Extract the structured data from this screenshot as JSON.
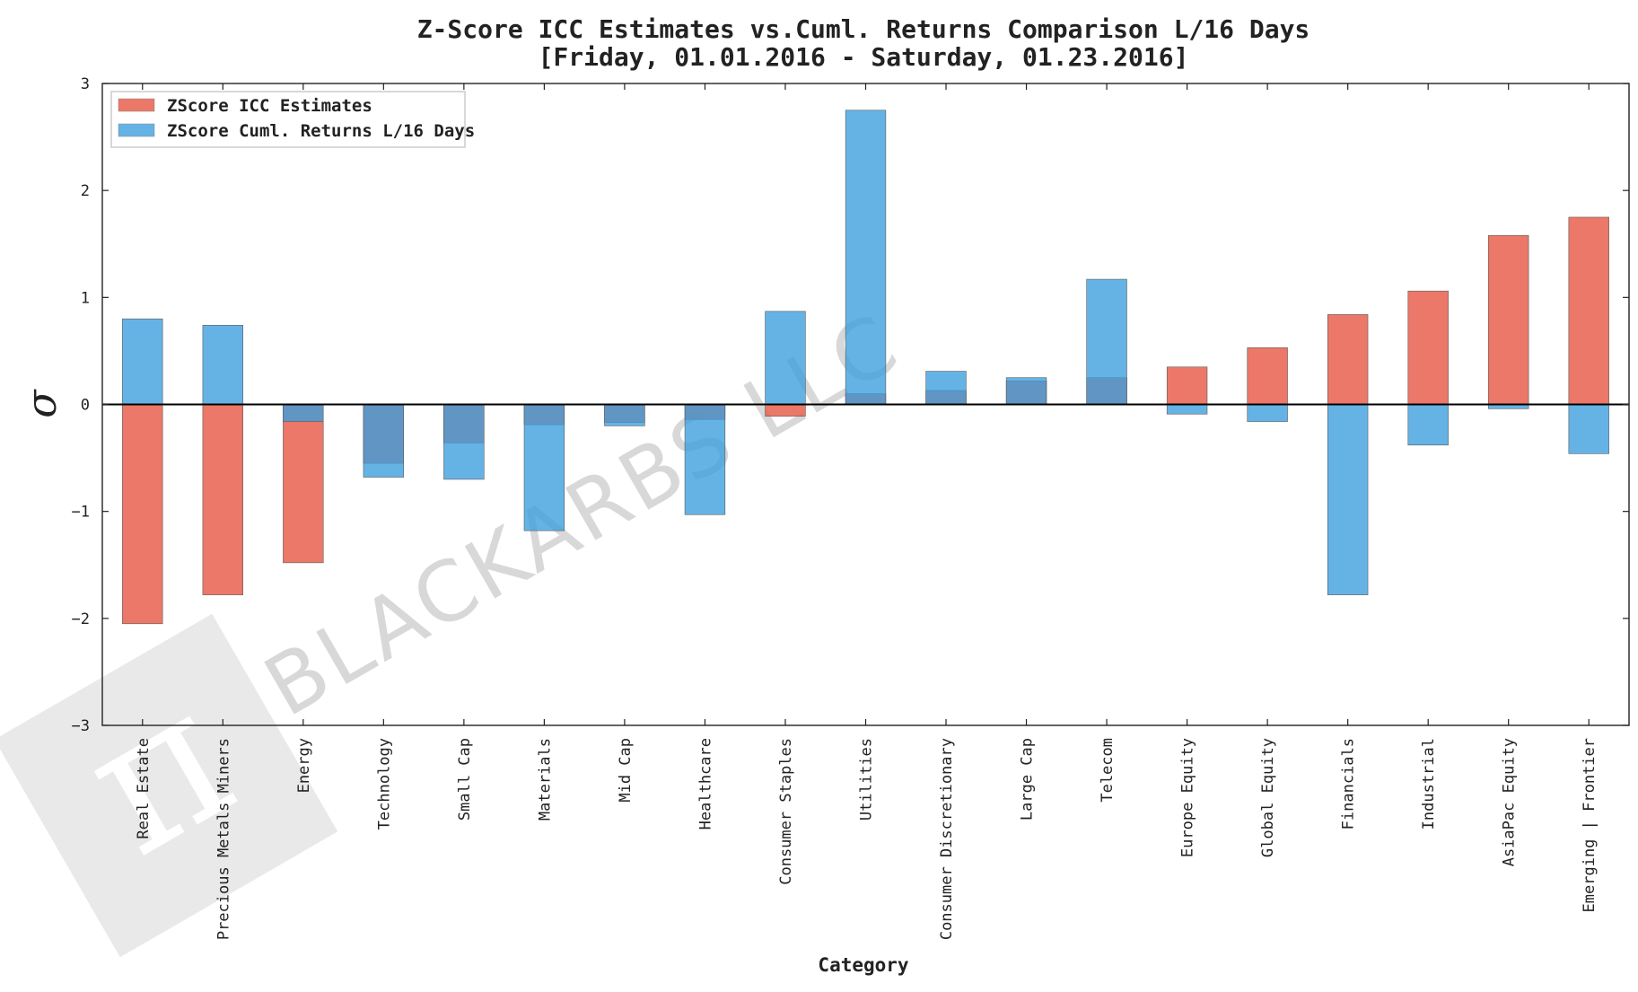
{
  "chart_data": {
    "type": "bar",
    "title_line1": "Z-Score ICC Estimates vs.Cuml. Returns Comparison L/16 Days",
    "title_line2": "[Friday, 01.01.2016 - Saturday, 01.23.2016]",
    "xlabel": "Category",
    "ylabel": "σ",
    "ylim": [
      -3,
      3
    ],
    "yticks": [
      -3,
      -2,
      -1,
      0,
      1,
      2,
      3
    ],
    "ytick_labels": [
      "−3",
      "−2",
      "−1",
      "0",
      "1",
      "2",
      "3"
    ],
    "legend_position": "top-left",
    "categories": [
      "Real Estate",
      "Precious Metals Miners",
      "Energy",
      "Technology",
      "Small Cap",
      "Materials",
      "Mid Cap",
      "Healthcare",
      "Consumer Staples",
      "Utilities",
      "Consumer Discretionary",
      "Large Cap",
      "Telecom",
      "Europe Equity",
      "Global Equity",
      "Financials",
      "Industrial",
      "AsiaPac Equity",
      "Emerging | Frontier"
    ],
    "series": [
      {
        "name": "ZScore ICC Estimates",
        "color": "#e8604e",
        "opacity": 0.85,
        "values": [
          -2.05,
          -1.78,
          -1.48,
          -0.55,
          -0.36,
          -0.19,
          -0.17,
          -0.14,
          -0.11,
          0.1,
          0.13,
          0.22,
          0.25,
          0.35,
          0.53,
          0.84,
          1.06,
          1.58,
          1.75
        ]
      },
      {
        "name": "ZScore Cuml. Returns L/16 Days",
        "color": "#3a9ede",
        "opacity": 0.78,
        "values": [
          0.8,
          0.74,
          -0.16,
          -0.68,
          -0.7,
          -1.18,
          -0.2,
          -1.03,
          0.87,
          2.75,
          0.31,
          0.25,
          1.17,
          -0.09,
          -0.16,
          -1.78,
          -0.38,
          -0.04,
          -0.46
        ]
      }
    ]
  },
  "watermark": {
    "text": "BLACKARBS LLC",
    "logo_glyph": "π"
  }
}
